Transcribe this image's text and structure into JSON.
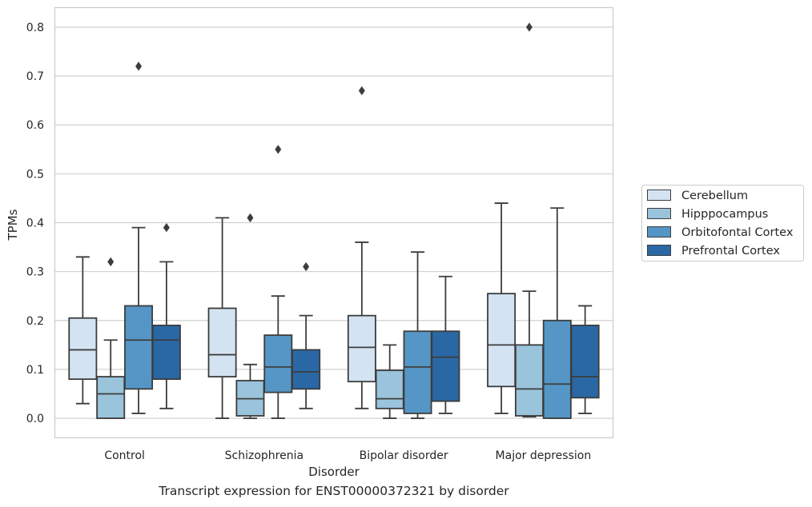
{
  "caption": "Transcript expression for ENST00000372321 by disorder",
  "chart_data": {
    "type": "boxplot",
    "xlabel": "Disorder",
    "ylabel": "TPMs",
    "ylim": [
      -0.04,
      0.84
    ],
    "yticks": [
      "0.0",
      "0.1",
      "0.2",
      "0.3",
      "0.4",
      "0.5",
      "0.6",
      "0.7",
      "0.8"
    ],
    "categories": [
      "Control",
      "Schizophrenia",
      "Bipolar disorder",
      "Major depression"
    ],
    "grid": true,
    "legend_position": "right",
    "series": [
      {
        "name": "Cerebellum",
        "color": "#d4e3f2",
        "boxes": [
          {
            "whislo": 0.03,
            "q1": 0.08,
            "med": 0.14,
            "q3": 0.205,
            "whishi": 0.33,
            "fliers": []
          },
          {
            "whislo": 0.0,
            "q1": 0.085,
            "med": 0.13,
            "q3": 0.225,
            "whishi": 0.41,
            "fliers": []
          },
          {
            "whislo": 0.02,
            "q1": 0.075,
            "med": 0.145,
            "q3": 0.21,
            "whishi": 0.36,
            "fliers": [
              0.67
            ]
          },
          {
            "whislo": 0.01,
            "q1": 0.065,
            "med": 0.15,
            "q3": 0.255,
            "whishi": 0.44,
            "fliers": []
          }
        ]
      },
      {
        "name": "Hipppocampus",
        "color": "#9ac3dc",
        "boxes": [
          {
            "whislo": 0.0,
            "q1": 0.0,
            "med": 0.05,
            "q3": 0.085,
            "whishi": 0.16,
            "fliers": [
              0.32
            ]
          },
          {
            "whislo": 0.0,
            "q1": 0.005,
            "med": 0.04,
            "q3": 0.077,
            "whishi": 0.11,
            "fliers": [
              0.41
            ]
          },
          {
            "whislo": 0.0,
            "q1": 0.02,
            "med": 0.04,
            "q3": 0.098,
            "whishi": 0.15,
            "fliers": []
          },
          {
            "whislo": 0.003,
            "q1": 0.005,
            "med": 0.06,
            "q3": 0.15,
            "whishi": 0.26,
            "fliers": [
              0.8
            ]
          }
        ]
      },
      {
        "name": "Orbitofontal Cortex",
        "color": "#5596c6",
        "boxes": [
          {
            "whislo": 0.01,
            "q1": 0.06,
            "med": 0.16,
            "q3": 0.23,
            "whishi": 0.39,
            "fliers": [
              0.72
            ]
          },
          {
            "whislo": 0.0,
            "q1": 0.053,
            "med": 0.105,
            "q3": 0.17,
            "whishi": 0.25,
            "fliers": [
              0.55
            ]
          },
          {
            "whislo": 0.0,
            "q1": 0.01,
            "med": 0.105,
            "q3": 0.178,
            "whishi": 0.34,
            "fliers": []
          },
          {
            "whislo": 0.0,
            "q1": 0.0,
            "med": 0.07,
            "q3": 0.2,
            "whishi": 0.43,
            "fliers": []
          }
        ]
      },
      {
        "name": "Prefrontal Cortex",
        "color": "#2a68a5",
        "boxes": [
          {
            "whislo": 0.02,
            "q1": 0.08,
            "med": 0.16,
            "q3": 0.19,
            "whishi": 0.32,
            "fliers": [
              0.39
            ]
          },
          {
            "whislo": 0.02,
            "q1": 0.06,
            "med": 0.095,
            "q3": 0.14,
            "whishi": 0.21,
            "fliers": [
              0.31
            ]
          },
          {
            "whislo": 0.01,
            "q1": 0.035,
            "med": 0.125,
            "q3": 0.178,
            "whishi": 0.29,
            "fliers": []
          },
          {
            "whislo": 0.01,
            "q1": 0.042,
            "med": 0.085,
            "q3": 0.19,
            "whishi": 0.23,
            "fliers": []
          }
        ]
      }
    ]
  }
}
